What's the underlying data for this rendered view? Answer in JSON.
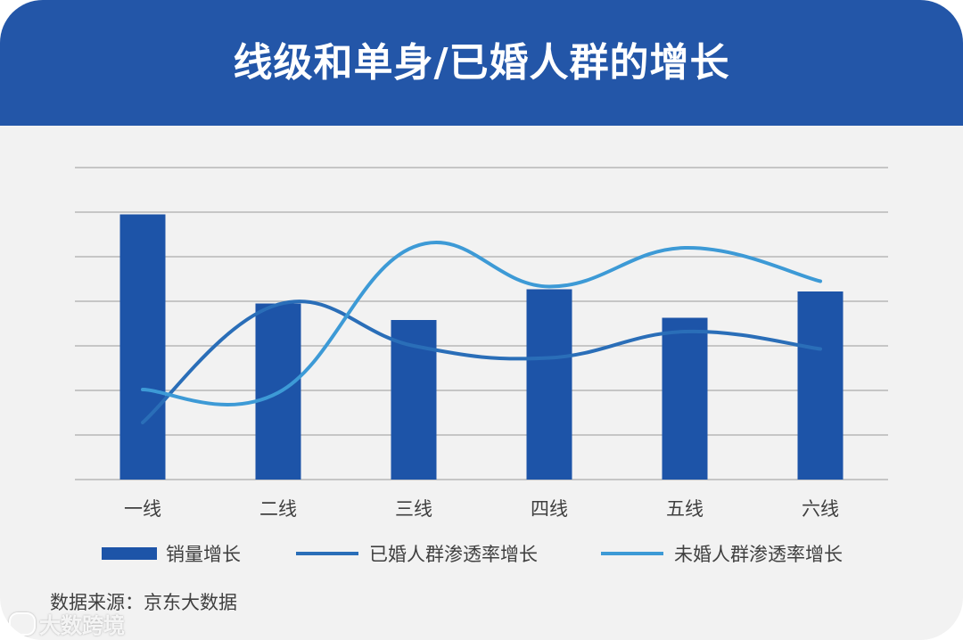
{
  "header": {
    "title": "线级和单身/已婚人群的增长"
  },
  "source_label": "数据来源：京东大数据",
  "watermark": {
    "text": "大数跨境",
    "icon": "brand-logo-icon"
  },
  "colors": {
    "header_bg": "#2356a8",
    "bar": "#1d54a8",
    "married_line": "#2a6eb8",
    "unmarried_line": "#3d9ad6",
    "grid": "#b8b8b8"
  },
  "chart_data": {
    "type": "bar",
    "title": "",
    "xlabel": "",
    "ylabel": "",
    "categories": [
      "一线",
      "二线",
      "三线",
      "四线",
      "五线",
      "六线"
    ],
    "ylim": [
      0,
      7
    ],
    "grid": true,
    "legend_position": "bottom",
    "series": [
      {
        "name": "销量增长",
        "type": "bar",
        "values": [
          5.95,
          3.95,
          3.58,
          4.27,
          3.63,
          4.22
        ]
      },
      {
        "name": "已婚人群渗透率增长",
        "type": "line",
        "values": [
          1.28,
          3.93,
          3.0,
          2.73,
          3.32,
          2.93
        ]
      },
      {
        "name": "未婚人群渗透率增长",
        "type": "line",
        "values": [
          2.02,
          1.95,
          5.22,
          4.33,
          5.2,
          4.45
        ]
      }
    ]
  }
}
